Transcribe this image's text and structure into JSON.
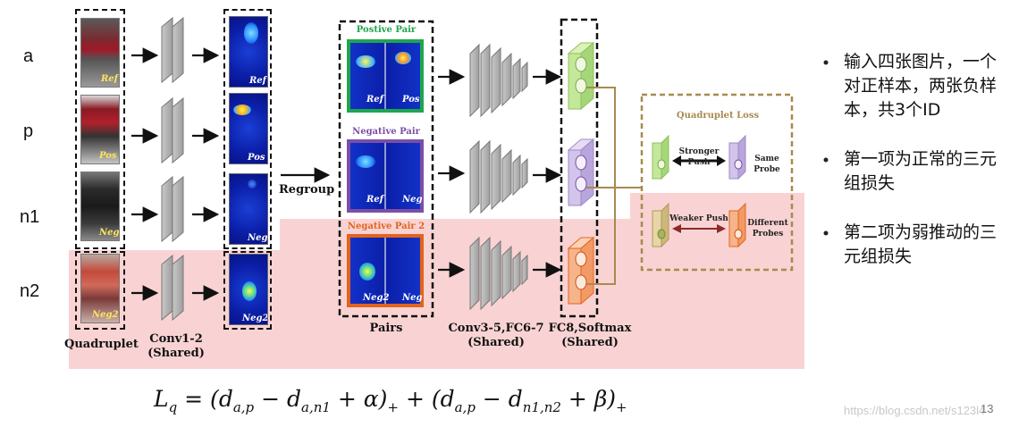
{
  "rows": [
    {
      "label": "a",
      "photo_tag": "Ref",
      "heat_tag": "Ref"
    },
    {
      "label": "p",
      "photo_tag": "Pos",
      "heat_tag": "Pos"
    },
    {
      "label": "n1",
      "photo_tag": "Neg",
      "heat_tag": "Neg"
    },
    {
      "label": "n2",
      "photo_tag": "Neg2",
      "heat_tag": "Neg2"
    }
  ],
  "regroup_label": "Regroup",
  "pairs": [
    {
      "title": "Postive Pair",
      "left": "Ref",
      "right": "Pos",
      "color": "#1ea64d"
    },
    {
      "title": "Negative Pair",
      "left": "Ref",
      "right": "Neg",
      "color": "#7b4fa6"
    },
    {
      "title": "Negative Pair 2",
      "left": "Neg2",
      "right": "Neg",
      "color": "#e2641c"
    }
  ],
  "captions": {
    "quadruplet": "Quadruplet",
    "conv12_line1": "Conv1-2",
    "conv12_line2": "(Shared)",
    "pairs": "Pairs",
    "conv35_line1": "Conv3-5,FC6-7",
    "conv35_line2": "(Shared)",
    "fc8_line1": "FC8,Softmax",
    "fc8_line2": "(Shared)"
  },
  "loss": {
    "title": "Quadruplet Loss",
    "stronger_push": "Stronger Push",
    "same_probe_line1": "Same",
    "same_probe_line2": "Probe",
    "weaker_push": "Weaker Push",
    "diff_probes_line1": "Different",
    "diff_probes_line2": "Probes"
  },
  "bullets": [
    {
      "line1": "输入四张图片，一个",
      "line2": "对正样本，两张负样",
      "line3": "本，共3个ID"
    },
    {
      "line1": "第一项为正常的三元",
      "line2": "组损失"
    },
    {
      "line1": "第二项为弱推动的三",
      "line2": "元组损失"
    }
  ],
  "formula": {
    "lhs": "L",
    "lhs_sub": "q",
    "t1_open": " = (d",
    "t1_sub1": "a,p",
    "t1_minus": " − d",
    "t1_sub2": "a,n1",
    "t1_alpha": " + α)",
    "t1_plus_sub": "+",
    "t2_open": " + (d",
    "t2_sub1": "a,p",
    "t2_minus": " − d",
    "t2_sub2": "n1,n2",
    "t2_beta": " + β)",
    "t2_plus_sub": "+"
  },
  "watermark": "https://blog.csdn.net/s123l4",
  "page_number": "13",
  "colors": {
    "pink_band": "#f9d3d3",
    "green": "#1ea64d",
    "purple": "#7b4fa6",
    "orange": "#e2641c",
    "loss_border": "#a88a4f",
    "connector": "#a88a4f"
  }
}
